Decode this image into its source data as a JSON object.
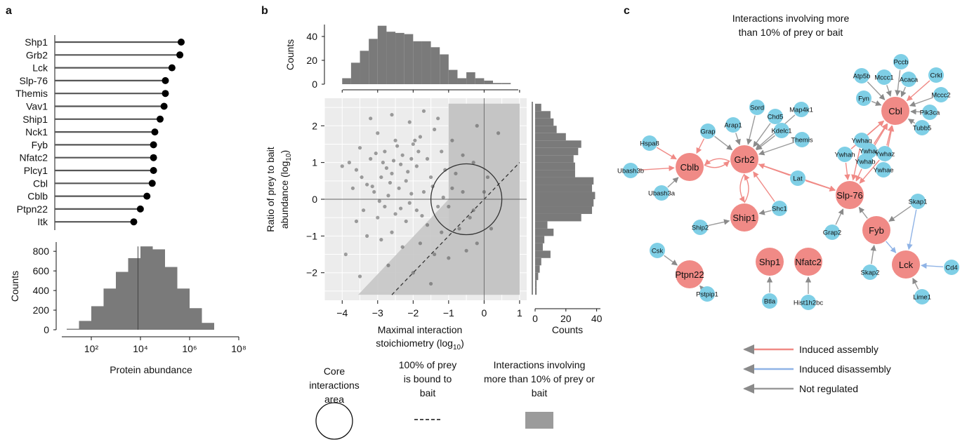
{
  "panels": {
    "a": "a",
    "b": "b",
    "c": "c"
  },
  "chart_data": [
    {
      "id": "abundance-lollipop",
      "type": "lollipop",
      "categories": [
        "Shp1",
        "Grb2",
        "Lck",
        "Slp-76",
        "Themis",
        "Vav1",
        "Ship1",
        "Nck1",
        "Fyb",
        "Nfatc2",
        "Plcγ1",
        "Cbl",
        "Cblb",
        "Ptpn22",
        "Itk"
      ],
      "values": [
        5.6,
        5.55,
        5.25,
        5.0,
        5.0,
        4.95,
        4.8,
        4.6,
        4.55,
        4.55,
        4.55,
        4.5,
        4.3,
        4.05,
        3.8
      ],
      "value_scale": "log10 protein abundance",
      "xlim": [
        0.8,
        8
      ]
    },
    {
      "id": "abundance-histogram",
      "type": "histogram",
      "bin_edges_log10": [
        1.0,
        1.5,
        2.0,
        2.5,
        3.0,
        3.5,
        4.0,
        4.5,
        5.0,
        5.5,
        6.0,
        6.5,
        7.0
      ],
      "counts": [
        10,
        90,
        240,
        420,
        590,
        730,
        850,
        820,
        640,
        420,
        220,
        70,
        10
      ],
      "median_log10": 3.9,
      "xlabel": "Protein abundance",
      "ylabel": "Counts",
      "xticks": [
        "10²",
        "10⁴",
        "10⁶",
        "10⁸"
      ],
      "xtick_values": [
        2,
        4,
        6,
        8
      ],
      "yticks": [
        0,
        200,
        400,
        600,
        800
      ],
      "ylim": [
        0,
        880
      ]
    },
    {
      "id": "stoichiometry-top-histogram",
      "type": "histogram",
      "bin_edges": [
        -4,
        -3.75,
        -3.5,
        -3.25,
        -3.0,
        -2.75,
        -2.5,
        -2.25,
        -2.0,
        -1.75,
        -1.5,
        -1.25,
        -1.0,
        -0.75,
        -0.5,
        -0.25,
        0.0,
        0.25,
        0.5,
        0.75
      ],
      "counts": [
        5,
        18,
        28,
        38,
        49,
        44,
        43,
        42,
        36,
        36,
        31,
        25,
        12,
        5,
        10,
        5,
        3,
        1,
        1
      ],
      "ylabel": "Counts",
      "yticks": [
        0,
        20,
        40
      ],
      "ylim": [
        0,
        50
      ]
    },
    {
      "id": "stoichiometry-scatter",
      "type": "scatter",
      "xlabel": "Maximal interaction stoichiometry (log10)",
      "ylabel": "Ratio of prey to bait abundance (log10)",
      "xlim": [
        -4.5,
        1.2
      ],
      "ylim": [
        -2.75,
        2.75
      ],
      "xticks": [
        -4,
        -3,
        -2,
        -1,
        0,
        1
      ],
      "yticks": [
        -2,
        -1,
        0,
        1,
        2
      ],
      "core_circle": {
        "center": [
          -0.5,
          0
        ],
        "radius_x": 1.0
      },
      "points": [
        [
          -3.5,
          1.4
        ],
        [
          -3.2,
          1.1
        ],
        [
          -3.0,
          1.8
        ],
        [
          -2.8,
          1.3
        ],
        [
          -2.5,
          1.6
        ],
        [
          -2.3,
          1.2
        ],
        [
          -2.0,
          1.5
        ],
        [
          -1.8,
          1.7
        ],
        [
          -1.6,
          1.1
        ],
        [
          -1.4,
          1.9
        ],
        [
          -1.2,
          1.3
        ],
        [
          -2.9,
          0.6
        ],
        [
          -3.3,
          0.4
        ],
        [
          -3.6,
          0.8
        ],
        [
          -2.6,
          0.7
        ],
        [
          -2.2,
          0.5
        ],
        [
          -1.9,
          0.9
        ],
        [
          -1.5,
          0.6
        ],
        [
          -1.1,
          0.8
        ],
        [
          -0.8,
          0.7
        ],
        [
          -3.1,
          0.2
        ],
        [
          -2.7,
          0.1
        ],
        [
          -2.4,
          0.3
        ],
        [
          -2.1,
          -0.1
        ],
        [
          -1.7,
          0.2
        ],
        [
          -1.3,
          -0.2
        ],
        [
          -0.9,
          0.3
        ],
        [
          -0.6,
          0.2
        ],
        [
          -3.8,
          1.0
        ],
        [
          -4.0,
          0.9
        ],
        [
          -3.4,
          -0.3
        ],
        [
          -3.0,
          -0.5
        ],
        [
          -2.8,
          -0.2
        ],
        [
          -2.5,
          -0.4
        ],
        [
          -2.2,
          -0.6
        ],
        [
          -1.9,
          -0.3
        ],
        [
          -1.6,
          -0.7
        ],
        [
          -1.2,
          -0.9
        ],
        [
          -0.7,
          -0.8
        ],
        [
          -0.4,
          -0.5
        ],
        [
          -3.6,
          -0.6
        ],
        [
          -3.3,
          -1.0
        ],
        [
          -2.9,
          -1.1
        ],
        [
          -2.6,
          -0.9
        ],
        [
          -2.3,
          -1.3
        ],
        [
          -1.8,
          -1.2
        ],
        [
          -1.4,
          -1.5
        ],
        [
          -1.0,
          -1.6
        ],
        [
          -0.5,
          -1.4
        ],
        [
          -0.2,
          -1.2
        ],
        [
          -3.9,
          -1.5
        ],
        [
          -3.5,
          -2.1
        ],
        [
          -2.7,
          -1.8
        ],
        [
          -2.0,
          -2.0
        ],
        [
          -1.5,
          -2.3
        ],
        [
          -3.2,
          2.2
        ],
        [
          -2.6,
          2.3
        ],
        [
          -2.1,
          2.1
        ],
        [
          -1.7,
          2.4
        ],
        [
          -1.3,
          2.2
        ],
        [
          -0.9,
          1.6
        ],
        [
          -0.6,
          1.2
        ],
        [
          -0.3,
          1.0
        ],
        [
          0.1,
          0.6
        ],
        [
          0.4,
          1.8
        ],
        [
          -0.2,
          2.0
        ],
        [
          0.2,
          -0.8
        ],
        [
          -1.0,
          -0.2
        ],
        [
          -0.3,
          -0.3
        ],
        [
          0.0,
          0.2
        ],
        [
          -2.85,
          1.0
        ],
        [
          -2.55,
          1.05
        ],
        [
          -2.35,
          0.95
        ],
        [
          -2.05,
          1.1
        ],
        [
          -1.85,
          1.3
        ],
        [
          -3.05,
          1.25
        ],
        [
          -2.75,
          0.85
        ],
        [
          -2.45,
          1.45
        ],
        [
          -2.15,
          0.75
        ],
        [
          -1.95,
          1.6
        ],
        [
          -3.15,
          0.35
        ],
        [
          -2.95,
          -0.05
        ],
        [
          -2.65,
          0.45
        ],
        [
          -2.35,
          -0.25
        ],
        [
          -2.05,
          0.15
        ],
        [
          -1.75,
          -0.45
        ],
        [
          -1.45,
          0.35
        ],
        [
          -1.15,
          0.05
        ],
        [
          -3.45,
          0.6
        ],
        [
          -3.7,
          0.3
        ]
      ]
    },
    {
      "id": "stoichiometry-right-histogram",
      "type": "histogram",
      "orientation": "horizontal",
      "bin_edges": [
        -2.6,
        -2.4,
        -2.2,
        -2.0,
        -1.8,
        -1.6,
        -1.4,
        -1.2,
        -1.0,
        -0.8,
        -0.6,
        -0.4,
        -0.2,
        0.0,
        0.2,
        0.4,
        0.6,
        0.8,
        1.0,
        1.2,
        1.4,
        1.6,
        1.8,
        2.0,
        2.2,
        2.4,
        2.6
      ],
      "counts": [
        1,
        1,
        2,
        3,
        4,
        10,
        5,
        6,
        12,
        8,
        30,
        37,
        38,
        39,
        37,
        38,
        26,
        26,
        25,
        28,
        30,
        20,
        14,
        12,
        10,
        4
      ],
      "xlabel": "Counts",
      "xticks": [
        0,
        20,
        40
      ],
      "xlim": [
        0,
        42
      ]
    }
  ],
  "scatter_legend": {
    "core_label": "Core interactions area",
    "stoich_label": "100% of prey is bound to bait",
    "shade_label": "Interactions involving more than 10% of prey or bait"
  },
  "network": {
    "title": "Interactions involving more than 10% of prey or bait",
    "colors": {
      "bait": "#f08a86",
      "prey": "#7fcfe6",
      "assembly": "#f08a86",
      "disassembly": "#8fb3e6",
      "not_regulated": "#9a9a9a"
    },
    "nodes": [
      {
        "id": "Cblb",
        "kind": "bait"
      },
      {
        "id": "Grb2",
        "kind": "bait"
      },
      {
        "id": "Ship1",
        "kind": "bait"
      },
      {
        "id": "Slp-76",
        "kind": "bait"
      },
      {
        "id": "Cbl",
        "kind": "bait"
      },
      {
        "id": "Fyb",
        "kind": "bait"
      },
      {
        "id": "Lck",
        "kind": "bait"
      },
      {
        "id": "Ptpn22",
        "kind": "bait"
      },
      {
        "id": "Shp1",
        "kind": "bait"
      },
      {
        "id": "Nfatc2",
        "kind": "bait"
      },
      {
        "id": "Hspa8",
        "kind": "prey"
      },
      {
        "id": "Ubash3b",
        "kind": "prey"
      },
      {
        "id": "Ubash3a",
        "kind": "prey"
      },
      {
        "id": "Grap",
        "kind": "prey"
      },
      {
        "id": "Arap1",
        "kind": "prey"
      },
      {
        "id": "Sord",
        "kind": "prey"
      },
      {
        "id": "Chd5",
        "kind": "prey"
      },
      {
        "id": "Map4k1",
        "kind": "prey"
      },
      {
        "id": "Kdelc1",
        "kind": "prey"
      },
      {
        "id": "Themis",
        "kind": "prey"
      },
      {
        "id": "Lat",
        "kind": "prey"
      },
      {
        "id": "Shc1",
        "kind": "prey"
      },
      {
        "id": "Ship2",
        "kind": "prey"
      },
      {
        "id": "Grap2",
        "kind": "prey"
      },
      {
        "id": "Atp5b",
        "kind": "prey"
      },
      {
        "id": "Pccb",
        "kind": "prey"
      },
      {
        "id": "Mccc1",
        "kind": "prey"
      },
      {
        "id": "Acaca",
        "kind": "prey"
      },
      {
        "id": "Crkl",
        "kind": "prey"
      },
      {
        "id": "Fyn",
        "kind": "prey"
      },
      {
        "id": "Mccc2",
        "kind": "prey"
      },
      {
        "id": "Pik3ca",
        "kind": "prey"
      },
      {
        "id": "Tubb5",
        "kind": "prey"
      },
      {
        "id": "Ywhaq",
        "kind": "prey"
      },
      {
        "id": "Ywhah",
        "kind": "prey"
      },
      {
        "id": "Ywhag",
        "kind": "prey"
      },
      {
        "id": "Ywhab",
        "kind": "prey"
      },
      {
        "id": "Ywhaz",
        "kind": "prey"
      },
      {
        "id": "Ywhae",
        "kind": "prey"
      },
      {
        "id": "Skap1",
        "kind": "prey"
      },
      {
        "id": "Skap2",
        "kind": "prey"
      },
      {
        "id": "Cd4",
        "kind": "prey"
      },
      {
        "id": "Lime1",
        "kind": "prey"
      },
      {
        "id": "Csk",
        "kind": "prey"
      },
      {
        "id": "Pstpip1",
        "kind": "prey"
      },
      {
        "id": "Btla",
        "kind": "prey"
      },
      {
        "id": "Hist1h2bc",
        "kind": "prey"
      }
    ],
    "edges": [
      {
        "from": "Hspa8",
        "to": "Cblb",
        "reg": "assembly"
      },
      {
        "from": "Ubash3b",
        "to": "Cblb",
        "reg": "assembly"
      },
      {
        "from": "Ubash3a",
        "to": "Cblb",
        "reg": "not_regulated"
      },
      {
        "from": "Grap",
        "to": "Cblb",
        "reg": "assembly"
      },
      {
        "from": "Grb2",
        "to": "Cblb",
        "reg": "assembly"
      },
      {
        "from": "Cblb",
        "to": "Grb2",
        "reg": "assembly"
      },
      {
        "from": "Grap",
        "to": "Grb2",
        "reg": "not_regulated"
      },
      {
        "from": "Arap1",
        "to": "Grb2",
        "reg": "not_regulated"
      },
      {
        "from": "Sord",
        "to": "Grb2",
        "reg": "not_regulated"
      },
      {
        "from": "Chd5",
        "to": "Grb2",
        "reg": "not_regulated"
      },
      {
        "from": "Map4k1",
        "to": "Grb2",
        "reg": "not_regulated"
      },
      {
        "from": "Kdelc1",
        "to": "Grb2",
        "reg": "not_regulated"
      },
      {
        "from": "Themis",
        "to": "Grb2",
        "reg": "not_regulated"
      },
      {
        "from": "Lat",
        "to": "Grb2",
        "reg": "assembly"
      },
      {
        "from": "Shc1",
        "to": "Grb2",
        "reg": "assembly"
      },
      {
        "from": "Ship1",
        "to": "Grb2",
        "reg": "assembly"
      },
      {
        "from": "Grb2",
        "to": "Ship1",
        "reg": "assembly"
      },
      {
        "from": "Shc1",
        "to": "Ship1",
        "reg": "not_regulated"
      },
      {
        "from": "Ship2",
        "to": "Ship1",
        "reg": "not_regulated"
      },
      {
        "from": "Grb2",
        "to": "Slp-76",
        "reg": "assembly"
      },
      {
        "from": "Lat",
        "to": "Slp-76",
        "reg": "assembly"
      },
      {
        "from": "Grap2",
        "to": "Slp-76",
        "reg": "not_regulated"
      },
      {
        "from": "Fyb",
        "to": "Slp-76",
        "reg": "not_regulated"
      },
      {
        "from": "Ywhaq",
        "to": "Slp-76",
        "reg": "assembly"
      },
      {
        "from": "Ywhah",
        "to": "Slp-76",
        "reg": "assembly"
      },
      {
        "from": "Ywhab",
        "to": "Slp-76",
        "reg": "assembly"
      },
      {
        "from": "Ywhaz",
        "to": "Slp-76",
        "reg": "assembly"
      },
      {
        "from": "Atp5b",
        "to": "Cbl",
        "reg": "not_regulated"
      },
      {
        "from": "Pccb",
        "to": "Cbl",
        "reg": "not_regulated"
      },
      {
        "from": "Mccc1",
        "to": "Cbl",
        "reg": "not_regulated"
      },
      {
        "from": "Acaca",
        "to": "Cbl",
        "reg": "not_regulated"
      },
      {
        "from": "Crkl",
        "to": "Cbl",
        "reg": "assembly"
      },
      {
        "from": "Fyn",
        "to": "Cbl",
        "reg": "not_regulated"
      },
      {
        "from": "Mccc2",
        "to": "Cbl",
        "reg": "not_regulated"
      },
      {
        "from": "Pik3ca",
        "to": "Cbl",
        "reg": "not_regulated"
      },
      {
        "from": "Tubb5",
        "to": "Cbl",
        "reg": "not_regulated"
      },
      {
        "from": "Ywhaq",
        "to": "Cbl",
        "reg": "assembly"
      },
      {
        "from": "Ywhah",
        "to": "Cbl",
        "reg": "assembly"
      },
      {
        "from": "Ywhag",
        "to": "Cbl",
        "reg": "assembly"
      },
      {
        "from": "Ywhab",
        "to": "Cbl",
        "reg": "assembly"
      },
      {
        "from": "Ywhaz",
        "to": "Cbl",
        "reg": "assembly"
      },
      {
        "from": "Ywhae",
        "to": "Cbl",
        "reg": "assembly"
      },
      {
        "from": "Skap1",
        "to": "Fyb",
        "reg": "not_regulated"
      },
      {
        "from": "Skap1",
        "to": "Lck",
        "reg": "disassembly"
      },
      {
        "from": "Fyb",
        "to": "Lck",
        "reg": "disassembly"
      },
      {
        "from": "Skap2",
        "to": "Fyb",
        "reg": "not_regulated"
      },
      {
        "from": "Cd4",
        "to": "Lck",
        "reg": "disassembly"
      },
      {
        "from": "Lime1",
        "to": "Lck",
        "reg": "not_regulated"
      },
      {
        "from": "Csk",
        "to": "Ptpn22",
        "reg": "not_regulated"
      },
      {
        "from": "Pstpip1",
        "to": "Ptpn22",
        "reg": "not_regulated"
      },
      {
        "from": "Btla",
        "to": "Shp1",
        "reg": "not_regulated"
      },
      {
        "from": "Hist1h2bc",
        "to": "Nfatc2",
        "reg": "not_regulated"
      }
    ],
    "legend": [
      {
        "label": "Induced assembly",
        "reg": "assembly"
      },
      {
        "label": "Induced disassembly",
        "reg": "disassembly"
      },
      {
        "label": "Not regulated",
        "reg": "not_regulated"
      }
    ]
  }
}
